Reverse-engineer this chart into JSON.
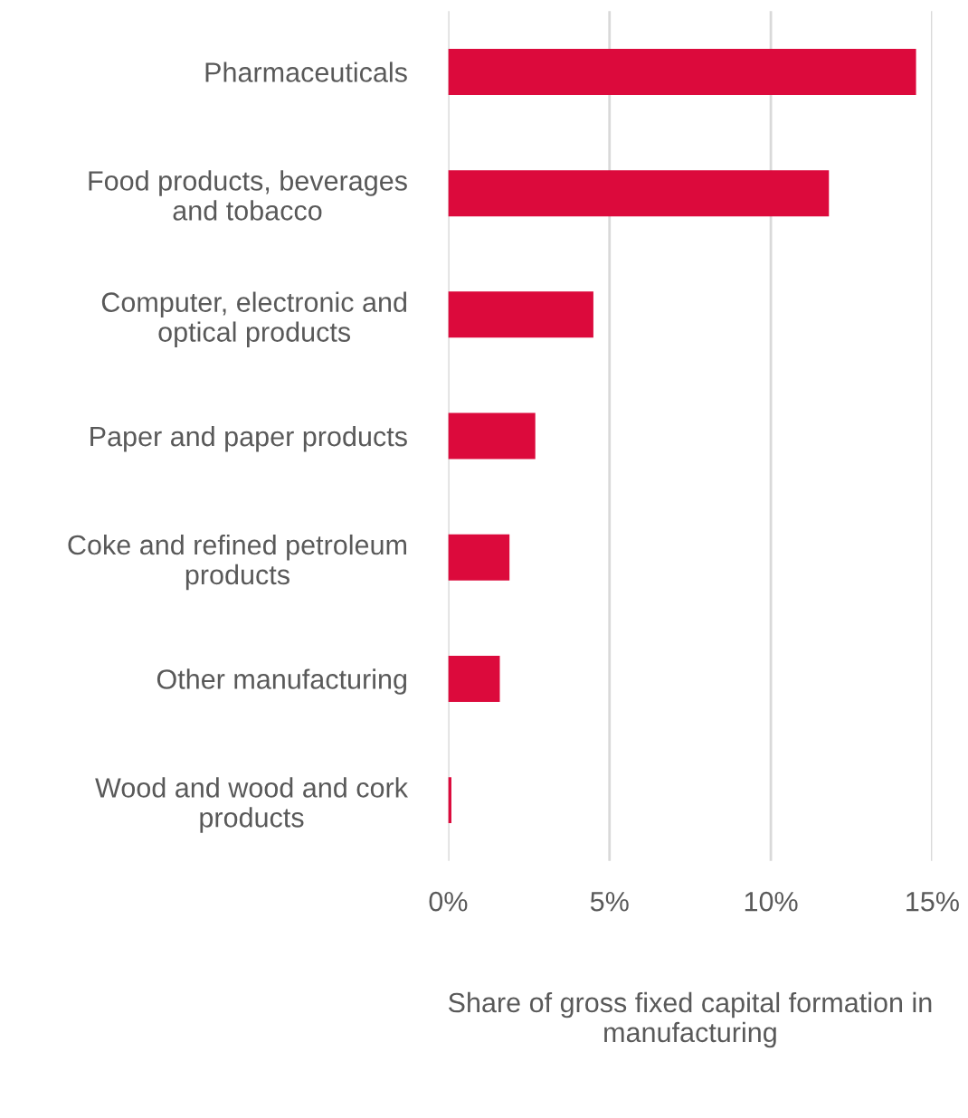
{
  "chart_data": {
    "type": "bar",
    "orientation": "horizontal",
    "categories": [
      "Pharmaceuticals",
      "Food products, beverages\nand tobacco",
      "Computer, electronic and\noptical products",
      "Paper and paper products",
      "Coke and refined petroleum\nproducts",
      "Other manufacturing",
      "Wood and wood and cork\nproducts"
    ],
    "values": [
      14.5,
      11.8,
      4.5,
      2.7,
      1.9,
      1.6,
      0.1
    ],
    "color": "#dc0a3c",
    "xlim": [
      0,
      15
    ],
    "xticks": [
      {
        "value": 0,
        "label": "0%"
      },
      {
        "value": 5,
        "label": "5%"
      },
      {
        "value": 10,
        "label": "10%"
      },
      {
        "value": 15,
        "label": "15%"
      }
    ],
    "xlabel": "Share of gross fixed capital formation in\nmanufacturing",
    "grid": "x",
    "legend": false
  }
}
